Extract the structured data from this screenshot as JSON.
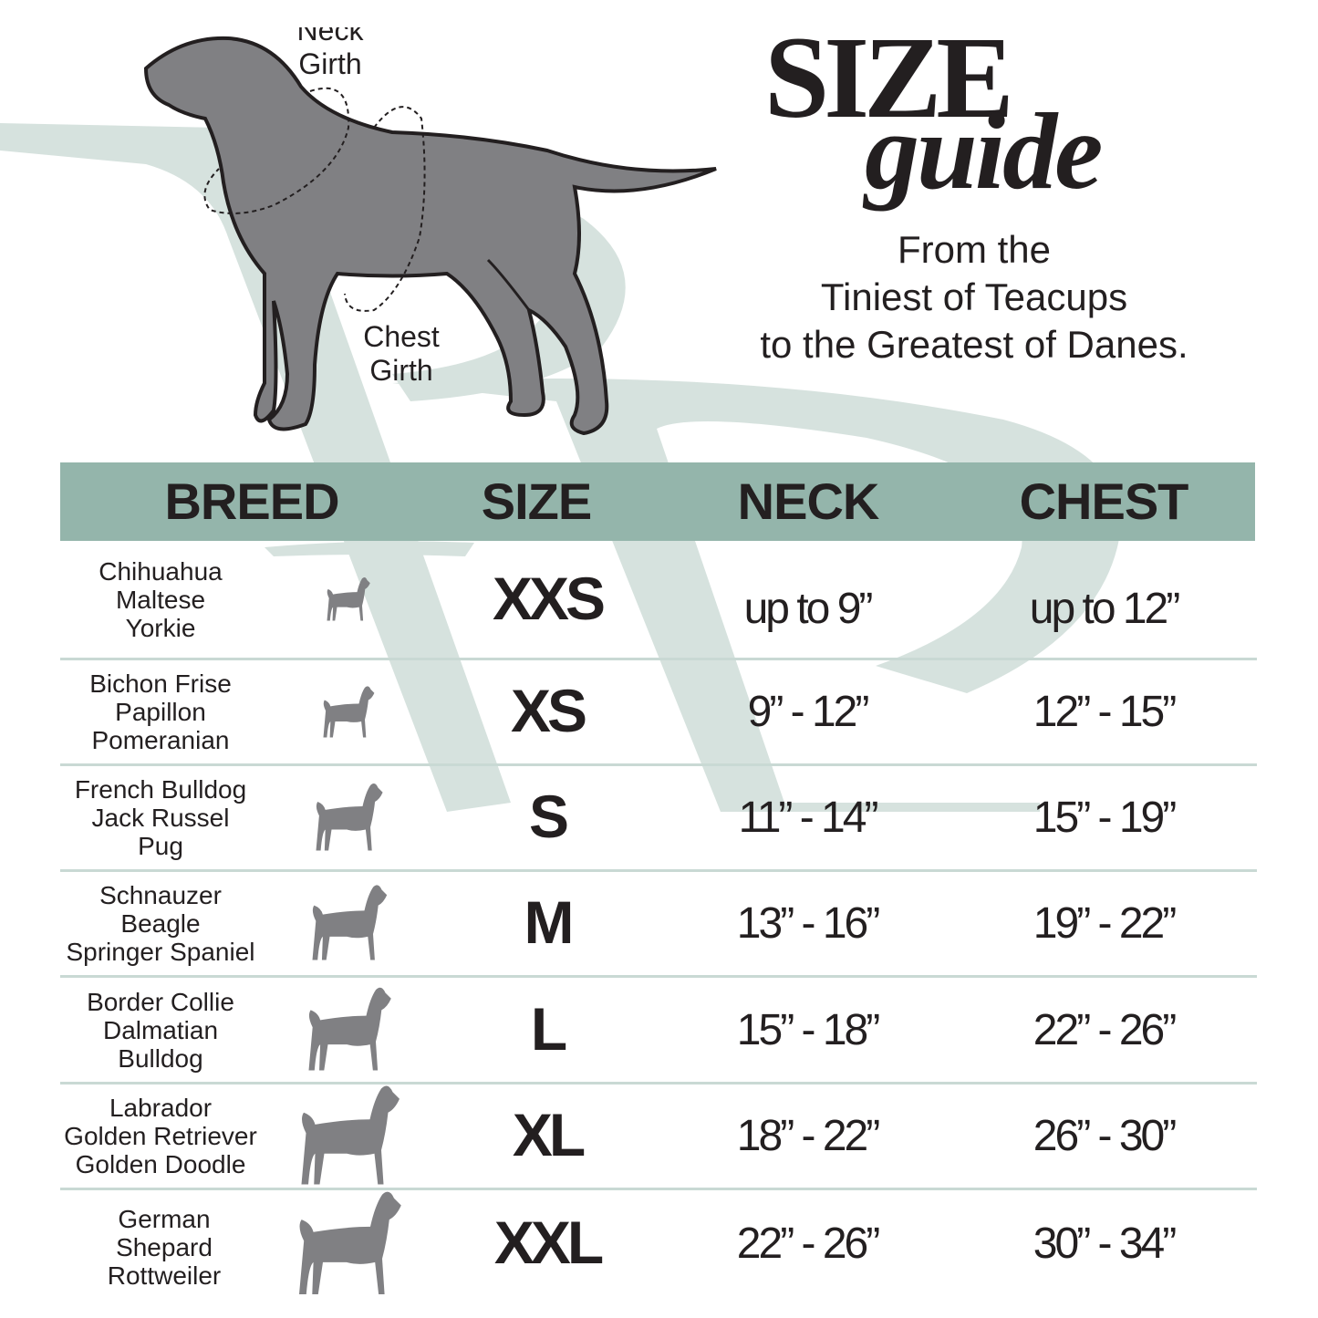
{
  "title": {
    "size": "SIZE",
    "guide": "guide"
  },
  "tagline": [
    "From the",
    "Tiniest of Teacups",
    "to the Greatest of Danes."
  ],
  "diagram": {
    "neck_label": [
      "Neck",
      "Girth"
    ],
    "chest_label": [
      "Chest",
      "Girth"
    ]
  },
  "colors": {
    "header": "#94b5ab",
    "watermark": "#d6e2de",
    "dog": "#808083",
    "divider": "#c9d9d4",
    "text": "#231f20"
  },
  "table": {
    "headers": [
      "BREED",
      "SIZE",
      "NECK",
      "CHEST"
    ],
    "rows": [
      {
        "breeds": [
          "Chihuahua",
          "Maltese",
          "Yorkie"
        ],
        "icon": "chihuahua-icon",
        "size": "XXS",
        "neck": "up to 9”",
        "chest": "up to 12”"
      },
      {
        "breeds": [
          "Bichon Frise",
          "Papillon",
          "Pomeranian"
        ],
        "icon": "pomeranian-icon",
        "size": "XS",
        "neck": "9” - 12”",
        "chest": "12” - 15”"
      },
      {
        "breeds": [
          "French Bulldog",
          "Jack Russel",
          "Pug"
        ],
        "icon": "french-bulldog-icon",
        "size": "S",
        "neck": "11” - 14”",
        "chest": "15” - 19”"
      },
      {
        "breeds": [
          "Schnauzer",
          "Beagle",
          "Springer Spaniel"
        ],
        "icon": "schnauzer-icon",
        "size": "M",
        "neck": "13” - 16”",
        "chest": "19” - 22”"
      },
      {
        "breeds": [
          "Border Collie",
          "Dalmatian",
          "Bulldog"
        ],
        "icon": "border-collie-icon",
        "size": "L",
        "neck": "15” - 18”",
        "chest": "22” - 26”"
      },
      {
        "breeds": [
          "Labrador",
          "Golden Retriever",
          "Golden Doodle"
        ],
        "icon": "golden-retriever-icon",
        "size": "XL",
        "neck": "18” - 22”",
        "chest": "26” - 30”"
      },
      {
        "breeds": [
          "German",
          "Shepard",
          "Rottweiler"
        ],
        "icon": "german-shepherd-icon",
        "size": "XXL",
        "neck": "22” - 26”",
        "chest": "30” - 34”"
      }
    ]
  }
}
